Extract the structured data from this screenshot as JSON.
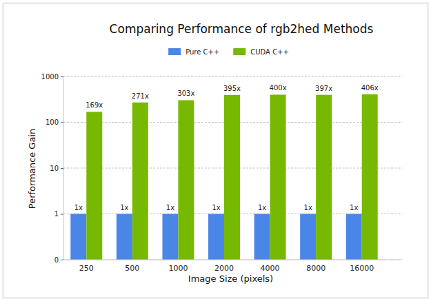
{
  "chart_data": {
    "type": "bar",
    "title": "Comparing Performance of rgb2hed Methods",
    "x_label": "Image Size (pixels)",
    "y_label": "Performance Gain",
    "categories": [
      "250",
      "500",
      "1000",
      "2000",
      "4000",
      "8000",
      "16000"
    ],
    "series": [
      {
        "name": "Pure C++",
        "color": "#4a86e8",
        "values": [
          1,
          1,
          1,
          1,
          1,
          1,
          1
        ],
        "value_labels": [
          "1x",
          "1x",
          "1x",
          "1x",
          "1x",
          "1x",
          "1x"
        ]
      },
      {
        "name": "CUDA C++",
        "color": "#76b900",
        "values": [
          169,
          271,
          303,
          395,
          400,
          397,
          406
        ],
        "value_labels": [
          "169x",
          "271x",
          "303x",
          "395x",
          "400x",
          "397x",
          "406x"
        ]
      }
    ],
    "log": "y",
    "ylim": [
      0,
      1000
    ],
    "yticks": [
      0,
      1,
      10,
      100,
      1000
    ],
    "grid": true,
    "legend": "top",
    "data_labels": true
  }
}
